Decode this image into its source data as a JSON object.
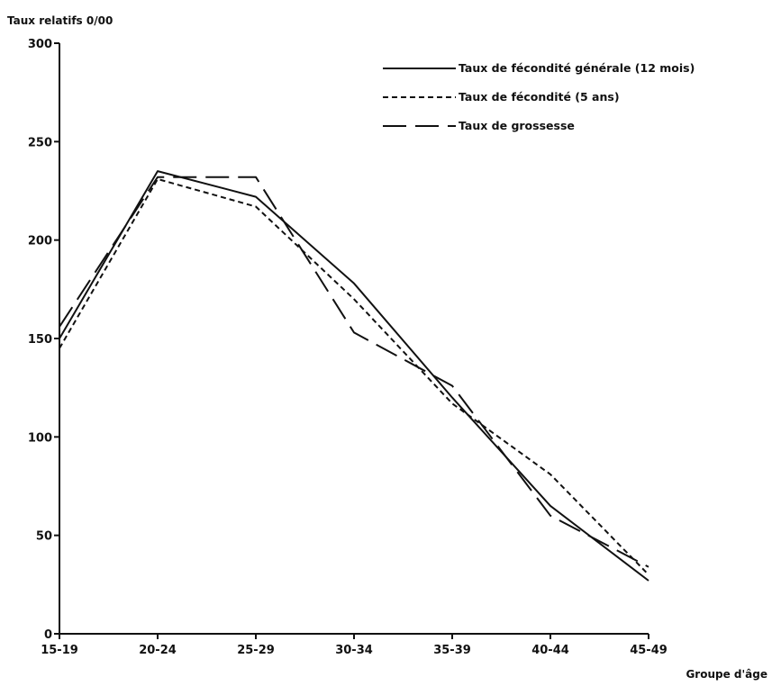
{
  "chart_data": {
    "type": "line",
    "ylabel": "Taux relatifs 0/00",
    "xlabel": "Groupe d'âge",
    "categories": [
      "15-19",
      "20-24",
      "25-29",
      "30-34",
      "35-39",
      "40-44",
      "45-49"
    ],
    "y_ticks": [
      0,
      50,
      100,
      150,
      200,
      250,
      300
    ],
    "ylim": [
      0,
      300
    ],
    "grid": false,
    "legend_position": "top-right",
    "series": [
      {
        "name": "Taux de fécondité générale (12 mois)",
        "style": "solid",
        "values": [
          150,
          235,
          222,
          178,
          120,
          65,
          27
        ]
      },
      {
        "name": "Taux de fécondité (5 ans)",
        "style": "short-dash",
        "values": [
          145,
          231,
          217,
          170,
          117,
          81,
          30
        ]
      },
      {
        "name": "Taux de grossesse",
        "style": "long-dash",
        "values": [
          156,
          232,
          232,
          153,
          126,
          60,
          34
        ]
      }
    ]
  }
}
